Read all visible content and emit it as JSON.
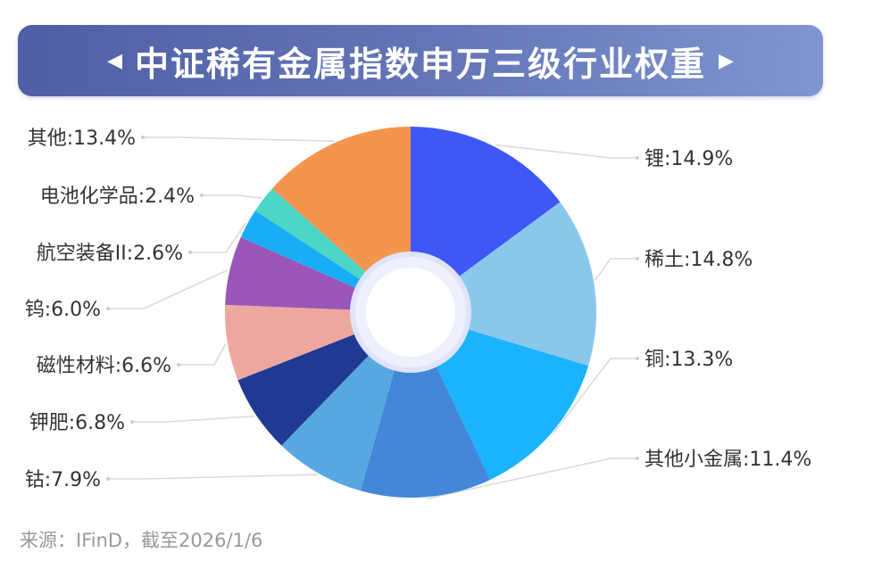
{
  "chart_data": {
    "type": "pie",
    "title": "中证稀有金属指数申万三级行业权重",
    "donut": true,
    "start_angle": "12 o'clock",
    "direction": "clockwise",
    "categories": [
      "锂",
      "稀土",
      "铜",
      "其他小金属",
      "钴",
      "钾肥",
      "磁性材料",
      "钨",
      "航空装备II",
      "电池化学品",
      "其他"
    ],
    "values": [
      14.9,
      14.8,
      13.3,
      11.4,
      7.9,
      6.8,
      6.6,
      6.0,
      2.6,
      2.4,
      13.4
    ],
    "labels": [
      "锂:14.9%",
      "稀土:14.8%",
      "铜:13.3%",
      "其他小金属:11.4%",
      "钴:7.9%",
      "钾肥:6.8%",
      "磁性材料:6.6%",
      "钨:6.0%",
      "航空装备II:2.6%",
      "电池化学品:2.4%",
      "其他:13.4%"
    ],
    "colors": [
      "#3f57f6",
      "#8ac7ea",
      "#1bb3fb",
      "#4287d8",
      "#57a7e0",
      "#1e3a92",
      "#eea79f",
      "#9a56b8",
      "#19adf6",
      "#4cd6c6",
      "#f5944f"
    ],
    "unit": "%"
  },
  "source": "来源：IFinD，截至2026/1/6"
}
